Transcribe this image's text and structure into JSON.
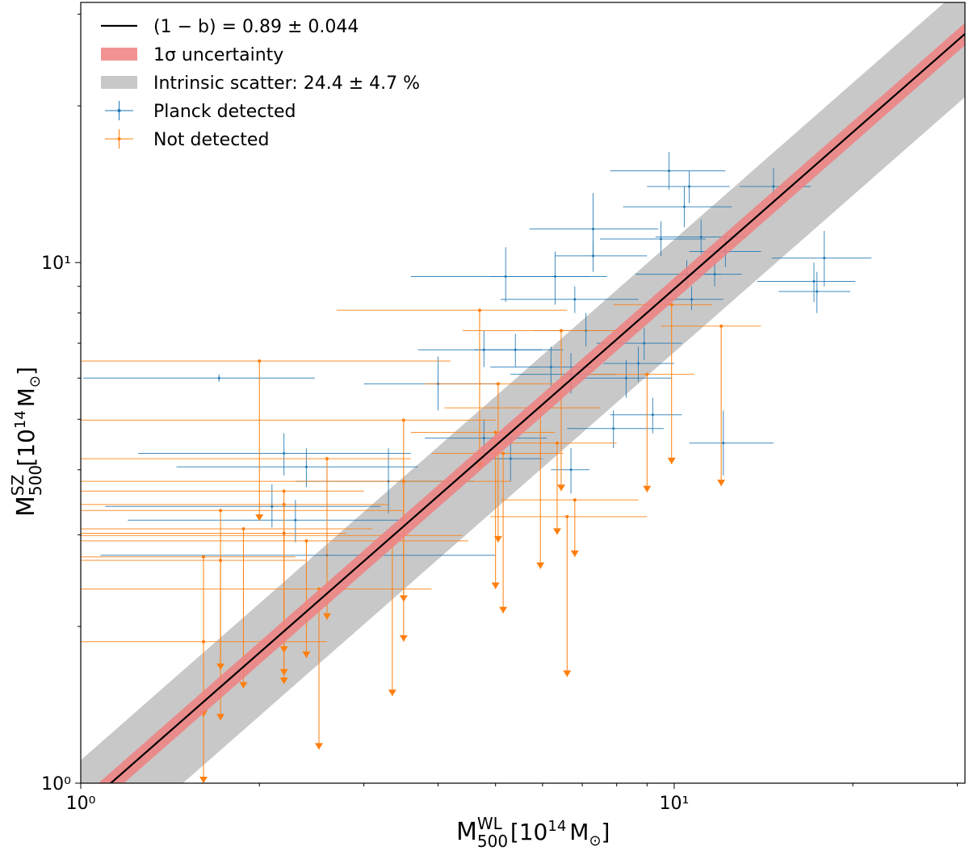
{
  "chart_data": {
    "type": "scatter",
    "xlog": true,
    "ylog": true,
    "xlim": [
      1,
      30.9
    ],
    "ylim": [
      1,
      31.6
    ],
    "xticks": [
      {
        "value": 1,
        "label": "10⁰"
      },
      {
        "value": 10,
        "label": "10¹"
      }
    ],
    "yticks": [
      {
        "value": 1,
        "label": "10⁰"
      },
      {
        "value": 10,
        "label": "10¹"
      }
    ],
    "xminorticks": [
      2,
      3,
      4,
      5,
      6,
      7,
      8,
      9,
      20,
      30
    ],
    "yminorticks": [
      2,
      3,
      4,
      5,
      6,
      7,
      8,
      9,
      20,
      30
    ],
    "xlabel": {
      "symbol": "M",
      "sub": "500",
      "sup": "WL",
      "unit": "[10",
      "unit_sup": "14",
      "unit_symbol": "M",
      "unit_sub": "⊙",
      "close": "]"
    },
    "ylabel": {
      "symbol": "M",
      "sub": "500",
      "sup": "SZ",
      "unit": "[10",
      "unit_sup": "14",
      "unit_symbol": "M",
      "unit_sub": "⊙",
      "close": "]"
    },
    "legend": "upper left",
    "fit": {
      "slope": 0.89,
      "slope_err": 0.044,
      "scatter_percent": 24.4,
      "line_name": "(1 − b) = 0.89 ± 0.044",
      "line_color": "#000000",
      "band_name": "1σ uncertainty",
      "band_color": "#f08080",
      "scatter_name": "Intrinsic scatter: 24.4 ± 4.7 %",
      "scatter_color": "#c8c8c8"
    },
    "series": [
      {
        "name": "Planck detected",
        "kind": "errorbar",
        "color": "#1f77b4",
        "x": [
          1.71,
          2.2,
          2.4,
          2.1,
          2.3,
          2.6,
          3.3,
          4.0,
          4.78,
          5.2,
          6.3,
          7.3,
          7.3,
          6.8,
          7.1,
          6.7,
          5.4,
          6.2,
          9.8,
          10.6,
          10.4,
          9.5,
          11.1,
          10.5,
          11.7,
          14.7,
          12.2,
          17.9,
          17.2,
          17.4,
          10.7,
          7.9,
          9.2,
          12.1,
          8.3,
          8.7,
          4.78,
          5.3,
          6.7,
          8.9
        ],
        "y": [
          6.0,
          4.3,
          4.05,
          3.4,
          3.2,
          2.74,
          3.8,
          5.85,
          6.8,
          9.4,
          9.4,
          11.6,
          10.3,
          8.5,
          7.4,
          6.1,
          6.8,
          6.3,
          15.0,
          14.0,
          12.8,
          11.1,
          11.2,
          9.5,
          9.5,
          14.0,
          10.5,
          10.2,
          9.2,
          8.8,
          8.5,
          4.8,
          5.1,
          4.5,
          6.0,
          6.4,
          4.6,
          4.2,
          4.0,
          7.0
        ],
        "x_low": [
          1.01,
          1.25,
          1.45,
          1.1,
          1.2,
          1.08,
          2.3,
          3.0,
          3.7,
          3.6,
          4.9,
          5.7,
          6.3,
          5.1,
          5.8,
          5.3,
          4.6,
          4.9,
          7.8,
          9.0,
          8.2,
          7.5,
          9.3,
          8.6,
          10.3,
          12.9,
          10.6,
          14.6,
          13.8,
          15.0,
          9.4,
          6.6,
          7.8,
          10.6,
          6.9,
          7.6,
          3.8,
          4.6,
          6.2,
          7.4
        ],
        "x_high": [
          2.48,
          3.6,
          3.7,
          3.2,
          3.5,
          5.0,
          4.6,
          5.1,
          6.0,
          7.2,
          7.7,
          9.4,
          9.0,
          8.7,
          8.7,
          8.0,
          6.5,
          7.3,
          12.2,
          12.4,
          12.5,
          11.3,
          13.2,
          12.0,
          13.0,
          17.0,
          14.0,
          21.5,
          20.2,
          19.8,
          12.1,
          9.6,
          10.3,
          14.7,
          9.9,
          10.0,
          6.1,
          6.0,
          7.2,
          10.3
        ],
        "y_low": [
          5.9,
          3.9,
          3.7,
          3.1,
          2.9,
          2.5,
          3.3,
          5.2,
          6.3,
          8.4,
          8.3,
          10.2,
          9.6,
          8.0,
          6.9,
          5.6,
          6.3,
          5.8,
          13.8,
          13.0,
          11.7,
          10.3,
          10.4,
          8.9,
          9.0,
          12.9,
          9.8,
          9.0,
          8.4,
          8.0,
          8.1,
          4.4,
          4.7,
          3.9,
          5.5,
          5.9,
          4.2,
          3.8,
          3.6,
          6.5
        ],
        "y_high": [
          6.1,
          4.7,
          4.4,
          3.75,
          3.5,
          3.0,
          4.4,
          6.6,
          7.4,
          10.7,
          10.5,
          13.6,
          11.0,
          9.0,
          8.0,
          6.7,
          7.3,
          6.9,
          16.3,
          15.0,
          14.0,
          12.0,
          12.1,
          10.1,
          10.0,
          15.2,
          11.3,
          11.5,
          10.0,
          9.6,
          9.0,
          5.2,
          5.5,
          5.2,
          6.5,
          6.9,
          5.0,
          4.6,
          4.4,
          7.5
        ]
      },
      {
        "name": "Not detected",
        "kind": "upper_limit",
        "color": "#ff7f0e",
        "x": [
          1.61,
          1.61,
          1.72,
          1.72,
          1.88,
          2.0,
          2.2,
          2.2,
          2.2,
          2.4,
          2.52,
          2.6,
          3.35,
          3.5,
          3.5,
          4.7,
          5.0,
          5.05,
          5.15,
          5.95,
          6.45,
          6.35,
          6.6,
          6.8,
          9.0,
          9.9,
          12.0
        ],
        "y": [
          2.72,
          1.87,
          3.34,
          2.68,
          3.08,
          6.47,
          3.64,
          3.43,
          3.02,
          2.92,
          2.36,
          4.2,
          2.99,
          4.98,
          3.8,
          8.1,
          4.72,
          5.85,
          4.3,
          5.26,
          7.4,
          4.5,
          3.25,
          3.5,
          6.1,
          8.3,
          7.55
        ],
        "x_low": [
          1.0,
          1.0,
          1.0,
          1.0,
          1.0,
          1.0,
          1.0,
          1.0,
          1.0,
          1.0,
          1.0,
          1.0,
          1.0,
          1.0,
          1.0,
          2.7,
          3.6,
          3.8,
          3.9,
          4.1,
          4.4,
          4.9,
          4.9,
          5.1,
          7.2,
          7.9,
          9.5
        ],
        "x_high": [
          2.3,
          2.6,
          3.5,
          2.4,
          3.1,
          4.2,
          3.0,
          3.3,
          2.8,
          4.5,
          3.9,
          3.6,
          4.4,
          5.0,
          5.3,
          6.6,
          6.3,
          6.4,
          6.5,
          7.5,
          8.6,
          8.0,
          9.0,
          8.7,
          10.8,
          11.6,
          14.0
        ],
        "y_tip": [
          1.34,
          1.0,
          1.65,
          1.32,
          1.52,
          3.19,
          1.55,
          1.61,
          1.78,
          1.74,
          1.16,
          2.06,
          1.47,
          2.23,
          1.87,
          4.02,
          2.36,
          2.9,
          2.12,
          2.58,
          3.64,
          3.0,
          1.6,
          2.72,
          3.62,
          4.1,
          3.72
        ]
      }
    ]
  }
}
